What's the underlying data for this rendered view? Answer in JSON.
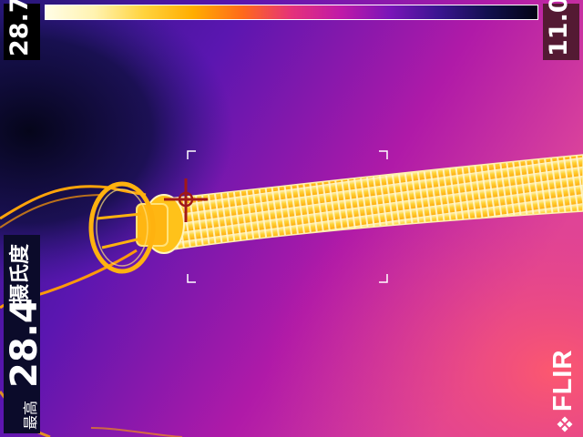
{
  "camera": {
    "brand": "FLIR",
    "max_label": "28.7",
    "min_label": "11.0"
  },
  "spot_meter": {
    "value": "28.4",
    "unit": "摄氏度",
    "label": "最高"
  },
  "palette": {
    "colors": [
      "#fffde6",
      "#fff3b0",
      "#ffd33d",
      "#ffad00",
      "#ff6a1a",
      "#e5327a",
      "#c01aa8",
      "#7a15b8",
      "#3a1590",
      "#12104e",
      "#030314"
    ],
    "crosshair_color": "#a01818",
    "bracket_color": "#ffffff"
  },
  "scene": {
    "subject": "thermal image of a ribbed heating hose with an end fitting and cable"
  }
}
